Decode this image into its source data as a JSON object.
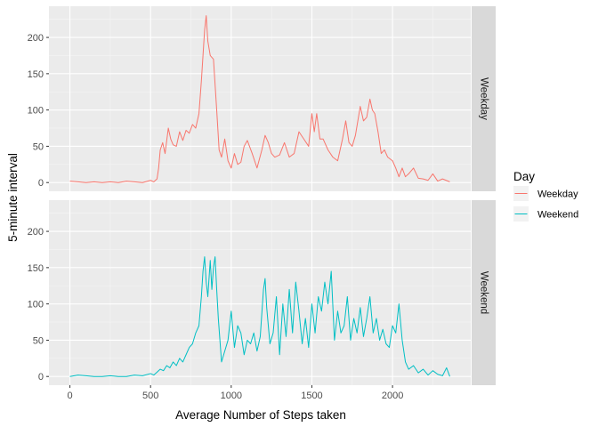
{
  "chart_data": {
    "type": "line",
    "facet": "rows",
    "xlabel": "Average Number of Steps taken",
    "ylabel": "5-minute interval",
    "xlim": [
      -130,
      2485
    ],
    "ylim": [
      -12,
      243
    ],
    "xticks": [
      0,
      500,
      1000,
      1500,
      2000
    ],
    "yticks": [
      0,
      50,
      100,
      150,
      200
    ],
    "grid": true,
    "legend": {
      "title": "Day",
      "placement": "right"
    },
    "panels": [
      {
        "strip": "Weekday",
        "series": {
          "name": "Weekday",
          "color": "#F8766D",
          "x": [
            0,
            50,
            100,
            150,
            200,
            250,
            300,
            350,
            400,
            450,
            500,
            520,
            540,
            550,
            560,
            575,
            590,
            610,
            625,
            640,
            660,
            680,
            700,
            720,
            740,
            760,
            780,
            800,
            815,
            825,
            835,
            845,
            855,
            870,
            890,
            910,
            925,
            940,
            960,
            980,
            1000,
            1020,
            1040,
            1060,
            1080,
            1100,
            1130,
            1160,
            1190,
            1210,
            1230,
            1250,
            1270,
            1300,
            1330,
            1360,
            1390,
            1420,
            1450,
            1480,
            1500,
            1515,
            1530,
            1550,
            1570,
            1600,
            1630,
            1660,
            1690,
            1710,
            1730,
            1750,
            1770,
            1800,
            1820,
            1840,
            1860,
            1875,
            1890,
            1910,
            1930,
            1950,
            1970,
            2000,
            2020,
            2040,
            2060,
            2080,
            2100,
            2130,
            2160,
            2190,
            2220,
            2250,
            2280,
            2310,
            2355
          ],
          "values": [
            2,
            1,
            0,
            1,
            0,
            1,
            0,
            2,
            1,
            0,
            3,
            1,
            5,
            20,
            45,
            55,
            40,
            75,
            60,
            52,
            50,
            70,
            58,
            72,
            68,
            80,
            75,
            95,
            140,
            175,
            210,
            230,
            195,
            175,
            170,
            100,
            45,
            35,
            60,
            30,
            20,
            40,
            25,
            28,
            50,
            58,
            40,
            20,
            45,
            65,
            55,
            40,
            35,
            38,
            55,
            35,
            40,
            70,
            60,
            50,
            95,
            70,
            95,
            60,
            60,
            45,
            35,
            30,
            60,
            85,
            55,
            50,
            65,
            105,
            85,
            90,
            115,
            100,
            95,
            70,
            40,
            45,
            35,
            30,
            20,
            8,
            20,
            8,
            12,
            20,
            6,
            5,
            3,
            12,
            2,
            5,
            1
          ]
        }
      },
      {
        "strip": "Weekend",
        "series": {
          "name": "Weekend",
          "color": "#00BFC4",
          "x": [
            0,
            50,
            100,
            150,
            200,
            250,
            300,
            350,
            400,
            450,
            500,
            520,
            540,
            560,
            580,
            600,
            620,
            640,
            660,
            680,
            700,
            720,
            740,
            760,
            780,
            800,
            815,
            825,
            835,
            845,
            855,
            870,
            880,
            890,
            900,
            910,
            920,
            940,
            960,
            980,
            1000,
            1020,
            1040,
            1060,
            1080,
            1100,
            1120,
            1140,
            1160,
            1180,
            1200,
            1210,
            1220,
            1240,
            1260,
            1280,
            1300,
            1320,
            1340,
            1360,
            1380,
            1400,
            1420,
            1440,
            1460,
            1480,
            1500,
            1520,
            1540,
            1560,
            1580,
            1600,
            1620,
            1640,
            1660,
            1680,
            1700,
            1720,
            1740,
            1760,
            1780,
            1800,
            1820,
            1840,
            1860,
            1880,
            1900,
            1920,
            1940,
            1960,
            1980,
            2000,
            2020,
            2040,
            2060,
            2080,
            2100,
            2130,
            2160,
            2190,
            2220,
            2250,
            2280,
            2310,
            2335,
            2355
          ],
          "values": [
            0,
            2,
            1,
            0,
            0,
            1,
            0,
            0,
            2,
            1,
            4,
            2,
            6,
            10,
            8,
            15,
            12,
            20,
            15,
            25,
            20,
            30,
            40,
            45,
            60,
            70,
            110,
            145,
            165,
            130,
            110,
            160,
            120,
            150,
            165,
            120,
            80,
            20,
            35,
            50,
            90,
            40,
            70,
            60,
            30,
            50,
            45,
            60,
            35,
            55,
            120,
            135,
            95,
            45,
            60,
            110,
            30,
            100,
            55,
            120,
            60,
            130,
            90,
            45,
            80,
            40,
            100,
            60,
            110,
            90,
            130,
            100,
            145,
            50,
            90,
            60,
            70,
            110,
            50,
            80,
            60,
            95,
            55,
            80,
            110,
            60,
            80,
            50,
            65,
            45,
            40,
            70,
            60,
            100,
            50,
            20,
            10,
            15,
            5,
            10,
            2,
            8,
            3,
            1,
            12,
            0
          ]
        }
      }
    ]
  }
}
